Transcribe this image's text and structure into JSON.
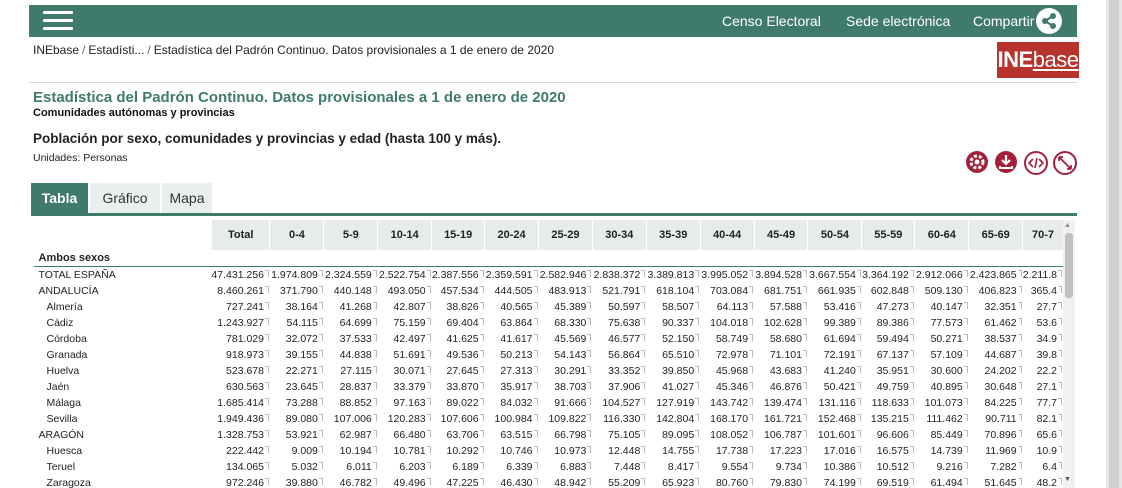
{
  "header": {
    "menu_icon": "hamburger-icon",
    "nav": [
      "Censo Electoral",
      "Sede electrónica",
      "Compartir"
    ],
    "share_icon": "share-icon",
    "color": "#3f7a6d"
  },
  "breadcrumb": [
    "INEbase",
    "Estadísti...",
    "Estadística del Padrón Continuo. Datos provisionales a 1 de enero de 2020"
  ],
  "logo": {
    "ine": "INE",
    "base": "base",
    "color": "#b9332d"
  },
  "page": {
    "title": "Estadística del Padrón Continuo. Datos provisionales a 1 de enero de 2020",
    "subtitle": "Comunidades autónomas y provincias",
    "table_title": "Población por sexo, comunidades y provincias y edad (hasta 100 y más).",
    "units": "Unidades: Personas"
  },
  "tools": [
    "gear-icon",
    "download-icon",
    "code-embed-icon",
    "fullscreen-icon"
  ],
  "tabs": [
    {
      "label": "Tabla",
      "active": true
    },
    {
      "label": "Gráfico",
      "active": false
    },
    {
      "label": "Mapa",
      "active": false
    }
  ],
  "table": {
    "columns": [
      "Total",
      "0-4",
      "5-9",
      "10-14",
      "15-19",
      "20-24",
      "25-29",
      "30-34",
      "35-39",
      "40-44",
      "45-49",
      "50-54",
      "55-59",
      "60-64",
      "65-69",
      "70-7"
    ],
    "group": "Ambos sexos",
    "rows": [
      {
        "label": "TOTAL ESPAÑA",
        "region": false,
        "values": [
          "47.431.256",
          "1.974.809",
          "2.324.559",
          "2.522.754",
          "2.387.556",
          "2.359.591",
          "2.582.946",
          "2.838.372",
          "3.389.813",
          "3.995.052",
          "3.894.528",
          "3.667.554",
          "3.364.192",
          "2.912.066",
          "2.423.865",
          "2.211.8"
        ]
      },
      {
        "label": "ANDALUCÍA",
        "region": false,
        "values": [
          "8.460.261",
          "371.790",
          "440.148",
          "493.050",
          "457.534",
          "444.505",
          "483.913",
          "521.791",
          "618.104",
          "703.084",
          "681.751",
          "661.935",
          "602.848",
          "509.130",
          "406.823",
          "365.4"
        ]
      },
      {
        "label": "Almería",
        "region": true,
        "values": [
          "727.241",
          "38.164",
          "41.268",
          "42.807",
          "38.826",
          "40.565",
          "45.389",
          "50.597",
          "58.507",
          "64.113",
          "57.588",
          "53.416",
          "47.273",
          "40.147",
          "32.351",
          "27.7"
        ]
      },
      {
        "label": "Cádiz",
        "region": true,
        "values": [
          "1.243.927",
          "54.115",
          "64.699",
          "75.159",
          "69.404",
          "63.864",
          "68.330",
          "75.638",
          "90.337",
          "104.018",
          "102.628",
          "99.389",
          "89.386",
          "77.573",
          "61.462",
          "53.6"
        ]
      },
      {
        "label": "Córdoba",
        "region": true,
        "values": [
          "781.029",
          "32.072",
          "37.533",
          "42.497",
          "41.625",
          "41.617",
          "45.569",
          "46.577",
          "52.150",
          "58.749",
          "58.680",
          "61.694",
          "59.494",
          "50.271",
          "38.537",
          "34.9"
        ]
      },
      {
        "label": "Granada",
        "region": true,
        "values": [
          "918.973",
          "39.155",
          "44.838",
          "51.691",
          "49.536",
          "50.213",
          "54.143",
          "56.864",
          "65.510",
          "72.978",
          "71.101",
          "72.191",
          "67.137",
          "57.109",
          "44.687",
          "39.8"
        ]
      },
      {
        "label": "Huelva",
        "region": true,
        "values": [
          "523.678",
          "22.271",
          "27.115",
          "30.071",
          "27.645",
          "27.313",
          "30.291",
          "33.352",
          "39.850",
          "45.968",
          "43.683",
          "41.240",
          "35.951",
          "30.600",
          "24.202",
          "22.2"
        ]
      },
      {
        "label": "Jaén",
        "region": true,
        "values": [
          "630.563",
          "23.645",
          "28.837",
          "33.379",
          "33.870",
          "35.917",
          "38.703",
          "37.906",
          "41.027",
          "45.346",
          "46.876",
          "50.421",
          "49.759",
          "40.895",
          "30.648",
          "27.1"
        ]
      },
      {
        "label": "Málaga",
        "region": true,
        "values": [
          "1.685.414",
          "73.288",
          "88.852",
          "97.163",
          "89.022",
          "84.032",
          "91.666",
          "104.527",
          "127.919",
          "143.742",
          "139.474",
          "131.116",
          "118.633",
          "101.073",
          "84.225",
          "77.7"
        ]
      },
      {
        "label": "Sevilla",
        "region": true,
        "values": [
          "1.949.436",
          "89.080",
          "107.006",
          "120.283",
          "107.606",
          "100.984",
          "109.822",
          "116.330",
          "142.804",
          "168.170",
          "161.721",
          "152.468",
          "135.215",
          "111.462",
          "90.711",
          "82.1"
        ]
      },
      {
        "label": "ARAGÓN",
        "region": false,
        "values": [
          "1.328.753",
          "53.921",
          "62.987",
          "66.480",
          "63.706",
          "63.515",
          "66.798",
          "75.105",
          "89.095",
          "108.052",
          "106.787",
          "101.601",
          "96.606",
          "85.449",
          "70.896",
          "65.6"
        ]
      },
      {
        "label": "Huesca",
        "region": true,
        "values": [
          "222.442",
          "9.009",
          "10.194",
          "10.781",
          "10.292",
          "10.746",
          "10.973",
          "12.448",
          "14.755",
          "17.738",
          "17.223",
          "17.016",
          "16.575",
          "14.739",
          "11.969",
          "10.9"
        ]
      },
      {
        "label": "Teruel",
        "region": true,
        "values": [
          "134.065",
          "5.032",
          "6.011",
          "6.203",
          "6.189",
          "6.339",
          "6.883",
          "7.448",
          "8.417",
          "9.554",
          "9.734",
          "10.386",
          "10.512",
          "9.216",
          "7.282",
          "6.4"
        ]
      },
      {
        "label": "Zaragoza",
        "region": true,
        "values": [
          "972.246",
          "39.880",
          "46.782",
          "49.496",
          "47.225",
          "46.430",
          "48.942",
          "55.209",
          "65.923",
          "80.760",
          "79.830",
          "74.199",
          "69.519",
          "61.494",
          "51.645",
          "48.2"
        ]
      }
    ]
  }
}
